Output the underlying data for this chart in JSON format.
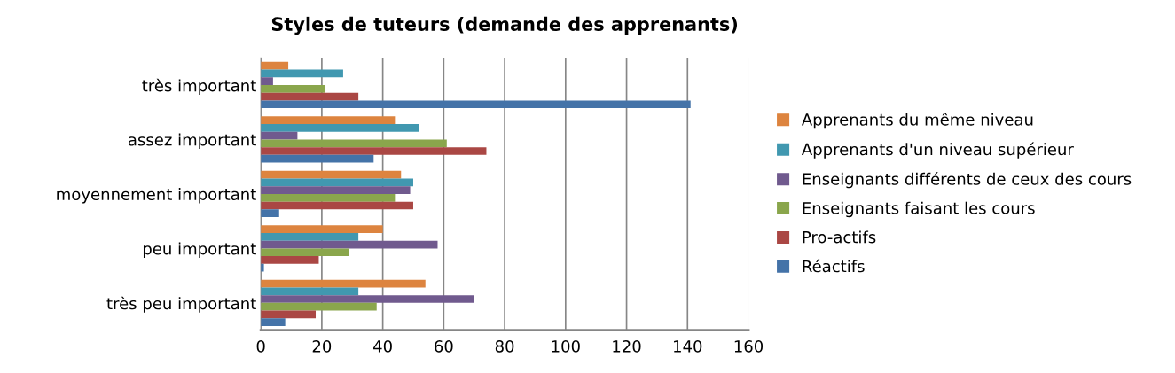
{
  "chart_data": {
    "type": "bar",
    "orientation": "horizontal",
    "title": "Styles de tuteurs (demande des apprenants)",
    "categories": [
      "très important",
      "assez important",
      "moyennement important",
      "peu important",
      "très peu important"
    ],
    "series": [
      {
        "name": "Apprenants du même niveau",
        "color": "#dd843f",
        "values": [
          9,
          44,
          46,
          40,
          54
        ]
      },
      {
        "name": "Apprenants d'un niveau supérieur",
        "color": "#4198b0",
        "values": [
          27,
          52,
          50,
          32,
          32
        ]
      },
      {
        "name": "Enseignants différents de ceux des cours",
        "color": "#705a8e",
        "values": [
          4,
          12,
          49,
          58,
          70
        ]
      },
      {
        "name": "Enseignants faisant les cours",
        "color": "#8aa64c",
        "values": [
          21,
          61,
          44,
          29,
          38
        ]
      },
      {
        "name": "Pro-actifs",
        "color": "#aa4744",
        "values": [
          32,
          74,
          50,
          19,
          18
        ]
      },
      {
        "name": "Réactifs",
        "color": "#4473a8",
        "values": [
          141,
          37,
          6,
          1,
          8
        ]
      }
    ],
    "xlim": [
      0,
      160
    ],
    "xticks": [
      0,
      20,
      40,
      60,
      80,
      100,
      120,
      140,
      160
    ],
    "grid": "x",
    "legend": "right"
  }
}
